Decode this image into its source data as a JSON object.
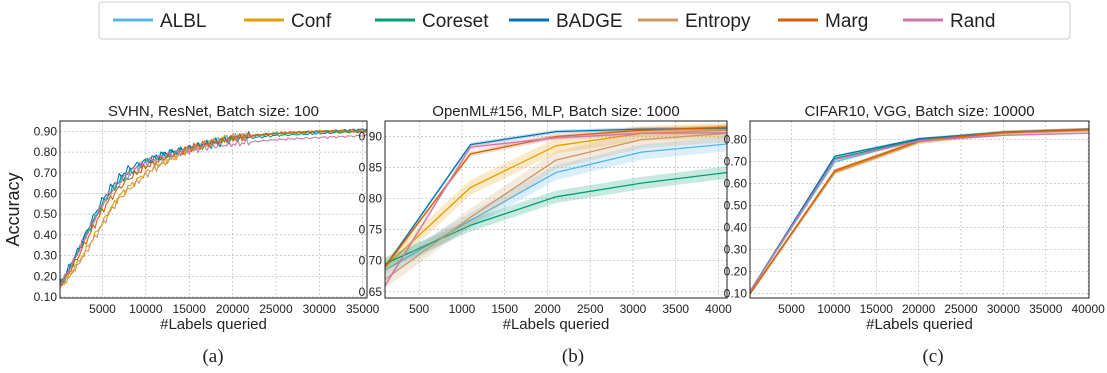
{
  "legend": {
    "entries": [
      {
        "label": "ALBL",
        "color": "#56B4E9"
      },
      {
        "label": "Conf",
        "color": "#E69F00"
      },
      {
        "label": "Coreset",
        "color": "#009E73"
      },
      {
        "label": "BADGE",
        "color": "#0072B2"
      },
      {
        "label": "Entropy",
        "color": "#CC9966"
      },
      {
        "label": "Marg",
        "color": "#D55E00"
      },
      {
        "label": "Rand",
        "color": "#CC79A7"
      }
    ]
  },
  "ylabel_shared": "Accuracy",
  "chart_data": [
    {
      "type": "line",
      "panel_label": "(a)",
      "title": "SVHN, ResNet, Batch size: 100",
      "xlabel": "#Labels queried",
      "ylabel": "Accuracy",
      "xlim": [
        100,
        35500
      ],
      "ylim": [
        0.095,
        0.95
      ],
      "xticks": [
        5000,
        10000,
        15000,
        20000,
        25000,
        30000,
        35000
      ],
      "xtick_labels": [
        "5000",
        "10000",
        "15000",
        "20000",
        "25000",
        "30000",
        "35000"
      ],
      "yticks": [
        0.1,
        0.2,
        0.3,
        0.4,
        0.5,
        0.6,
        0.7,
        0.8,
        0.9
      ],
      "ytick_labels": [
        "0.10",
        "0.20",
        "0.30",
        "0.40",
        "0.50",
        "0.60",
        "0.70",
        "0.80",
        "0.90"
      ],
      "grid": true,
      "series": [
        {
          "name": "ALBL",
          "color": "#56B4E9",
          "x": [
            100,
            1000,
            2000,
            3000,
            4000,
            5000,
            6000,
            7000,
            8000,
            10000,
            12000,
            15000,
            18000,
            20000,
            25000,
            30000,
            35500
          ],
          "y": [
            0.16,
            0.22,
            0.3,
            0.38,
            0.46,
            0.54,
            0.6,
            0.65,
            0.69,
            0.74,
            0.78,
            0.82,
            0.85,
            0.87,
            0.89,
            0.9,
            0.9
          ]
        },
        {
          "name": "Conf",
          "color": "#E69F00",
          "x": [
            100,
            1000,
            2000,
            3000,
            4000,
            5000,
            6000,
            7000,
            8000,
            10000,
            12000,
            15000,
            18000,
            20000,
            25000,
            30000,
            35500
          ],
          "y": [
            0.15,
            0.19,
            0.25,
            0.32,
            0.39,
            0.46,
            0.53,
            0.59,
            0.63,
            0.7,
            0.75,
            0.81,
            0.85,
            0.87,
            0.89,
            0.9,
            0.9
          ]
        },
        {
          "name": "Coreset",
          "color": "#009E73",
          "x": [
            100,
            1000,
            2000,
            3000,
            4000,
            5000,
            6000,
            7000,
            8000,
            10000,
            12000,
            15000,
            18000,
            20000,
            25000,
            30000,
            35500
          ],
          "y": [
            0.16,
            0.22,
            0.3,
            0.39,
            0.47,
            0.55,
            0.61,
            0.66,
            0.7,
            0.75,
            0.78,
            0.82,
            0.84,
            0.86,
            0.88,
            0.89,
            0.9
          ]
        },
        {
          "name": "BADGE",
          "color": "#0072B2",
          "x": [
            100,
            1000,
            2000,
            3000,
            4000,
            5000,
            6000,
            7000,
            8000,
            10000,
            12000,
            15000,
            18000,
            20000,
            25000,
            30000,
            35500
          ],
          "y": [
            0.17,
            0.23,
            0.31,
            0.4,
            0.49,
            0.57,
            0.63,
            0.68,
            0.72,
            0.76,
            0.79,
            0.82,
            0.85,
            0.87,
            0.89,
            0.9,
            0.91
          ]
        },
        {
          "name": "Entropy",
          "color": "#CC9966",
          "x": [
            100,
            1000,
            2000,
            3000,
            4000,
            5000,
            6000,
            7000,
            8000,
            10000,
            12000,
            15000,
            18000,
            20000,
            25000,
            30000,
            35500
          ],
          "y": [
            0.15,
            0.19,
            0.25,
            0.31,
            0.38,
            0.45,
            0.52,
            0.58,
            0.62,
            0.69,
            0.75,
            0.81,
            0.85,
            0.87,
            0.89,
            0.9,
            0.9
          ]
        },
        {
          "name": "Marg",
          "color": "#D55E00",
          "x": [
            100,
            1000,
            2000,
            3000,
            4000,
            5000,
            6000,
            7000,
            8000,
            10000,
            12000,
            15000,
            18000,
            20000,
            25000,
            30000,
            35500
          ],
          "y": [
            0.16,
            0.21,
            0.28,
            0.36,
            0.44,
            0.52,
            0.58,
            0.63,
            0.67,
            0.73,
            0.77,
            0.82,
            0.85,
            0.87,
            0.89,
            0.9,
            0.9
          ]
        },
        {
          "name": "Rand",
          "color": "#CC79A7",
          "x": [
            100,
            1000,
            2000,
            3000,
            4000,
            5000,
            6000,
            7000,
            8000,
            10000,
            12000,
            15000,
            18000,
            20000,
            25000,
            30000,
            35500
          ],
          "y": [
            0.16,
            0.22,
            0.3,
            0.39,
            0.47,
            0.55,
            0.61,
            0.66,
            0.7,
            0.75,
            0.78,
            0.81,
            0.83,
            0.84,
            0.86,
            0.87,
            0.88
          ]
        }
      ]
    },
    {
      "type": "line",
      "panel_label": "(b)",
      "title": "OpenML#156, MLP, Batch size: 1000",
      "xlabel": "#Labels queried",
      "ylabel": "",
      "xlim": [
        100,
        4100
      ],
      "ylim": [
        0.64,
        0.925
      ],
      "xticks": [
        500,
        1000,
        1500,
        2000,
        2500,
        3000,
        3500,
        4000
      ],
      "xtick_labels": [
        "500",
        "1000",
        "1500",
        "2000",
        "2500",
        "3000",
        "3500",
        "4000"
      ],
      "yticks": [
        0.65,
        0.7,
        0.75,
        0.8,
        0.85,
        0.9
      ],
      "ytick_labels": [
        "0.65",
        "0.70",
        "0.75",
        "0.80",
        "0.85",
        "0.90"
      ],
      "grid": true,
      "series": [
        {
          "name": "ALBL",
          "color": "#56B4E9",
          "x": [
            100,
            1100,
            2100,
            3100,
            4100
          ],
          "y": [
            0.685,
            0.765,
            0.842,
            0.875,
            0.888
          ],
          "band": 0.012
        },
        {
          "name": "Conf",
          "color": "#E69F00",
          "x": [
            100,
            1100,
            2100,
            3100,
            4100
          ],
          "y": [
            0.69,
            0.818,
            0.885,
            0.905,
            0.91
          ],
          "band": 0.012
        },
        {
          "name": "Coreset",
          "color": "#009E73",
          "x": [
            100,
            1100,
            2100,
            3100,
            4100
          ],
          "y": [
            0.695,
            0.757,
            0.803,
            0.825,
            0.842
          ],
          "band": 0.01
        },
        {
          "name": "BADGE",
          "color": "#0072B2",
          "x": [
            100,
            1100,
            2100,
            3100,
            4100
          ],
          "y": [
            0.69,
            0.887,
            0.908,
            0.912,
            0.913
          ],
          "band": 0.003
        },
        {
          "name": "Entropy",
          "color": "#CC9966",
          "x": [
            100,
            1100,
            2100,
            3100,
            4100
          ],
          "y": [
            0.67,
            0.77,
            0.862,
            0.895,
            0.905
          ],
          "band": 0.014
        },
        {
          "name": "Marg",
          "color": "#D55E00",
          "x": [
            100,
            1100,
            2100,
            3100,
            4100
          ],
          "y": [
            0.69,
            0.872,
            0.9,
            0.91,
            0.915
          ],
          "band": 0.004
        },
        {
          "name": "Rand",
          "color": "#CC79A7",
          "x": [
            100,
            1100,
            2100,
            3100,
            4100
          ],
          "y": [
            0.66,
            0.883,
            0.898,
            0.905,
            0.906
          ],
          "band": 0.004
        }
      ]
    },
    {
      "type": "line",
      "panel_label": "(c)",
      "title": "CIFAR10, VGG, Batch size: 10000",
      "xlabel": "#Labels queried",
      "ylabel": "",
      "xlim": [
        100,
        40100
      ],
      "ylim": [
        0.08,
        0.885
      ],
      "xticks": [
        5000,
        10000,
        15000,
        20000,
        25000,
        30000,
        35000,
        40000
      ],
      "xtick_labels": [
        "5000",
        "10000",
        "15000",
        "20000",
        "25000",
        "30000",
        "35000",
        "40000"
      ],
      "yticks": [
        0.1,
        0.2,
        0.3,
        0.4,
        0.5,
        0.6,
        0.7,
        0.8
      ],
      "ytick_labels": [
        "0.10",
        "0.20",
        "0.30",
        "0.40",
        "0.50",
        "0.60",
        "0.70",
        "0.80"
      ],
      "grid": true,
      "series": [
        {
          "name": "ALBL",
          "color": "#56B4E9",
          "x": [
            100,
            10100,
            20100,
            30100,
            40100
          ],
          "y": [
            0.11,
            0.7,
            0.8,
            0.835,
            0.845
          ],
          "band": 0.008
        },
        {
          "name": "Conf",
          "color": "#E69F00",
          "x": [
            100,
            10100,
            20100,
            30100,
            40100
          ],
          "y": [
            0.1,
            0.655,
            0.79,
            0.832,
            0.845
          ],
          "band": 0.01
        },
        {
          "name": "Coreset",
          "color": "#009E73",
          "x": [
            100,
            10100,
            20100,
            30100,
            40100
          ],
          "y": [
            0.11,
            0.715,
            0.8,
            0.833,
            0.843
          ],
          "band": 0.005
        },
        {
          "name": "BADGE",
          "color": "#0072B2",
          "x": [
            100,
            10100,
            20100,
            30100,
            40100
          ],
          "y": [
            0.11,
            0.725,
            0.805,
            0.835,
            0.848
          ],
          "band": 0.005
        },
        {
          "name": "Entropy",
          "color": "#CC9966",
          "x": [
            100,
            10100,
            20100,
            30100,
            40100
          ],
          "y": [
            0.1,
            0.65,
            0.79,
            0.83,
            0.843
          ],
          "band": 0.01
        },
        {
          "name": "Marg",
          "color": "#D55E00",
          "x": [
            100,
            10100,
            20100,
            30100,
            40100
          ],
          "y": [
            0.1,
            0.66,
            0.795,
            0.833,
            0.846
          ],
          "band": 0.008
        },
        {
          "name": "Rand",
          "color": "#CC79A7",
          "x": [
            100,
            10100,
            20100,
            30100,
            40100
          ],
          "y": [
            0.11,
            0.71,
            0.795,
            0.82,
            0.83
          ],
          "band": 0.005
        }
      ]
    }
  ]
}
